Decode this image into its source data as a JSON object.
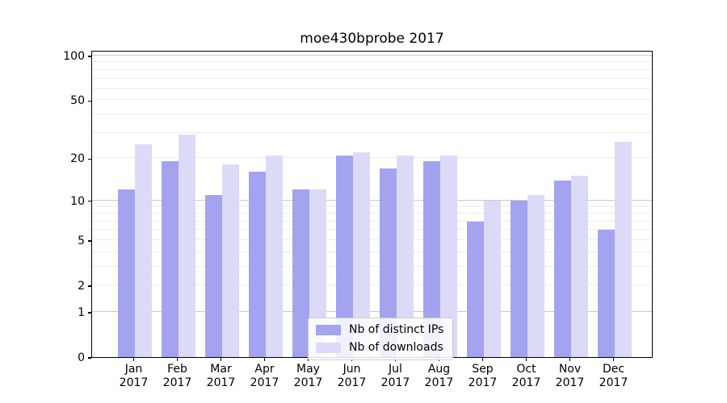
{
  "chart_data": {
    "type": "bar",
    "title": "moe430bprobe 2017",
    "categories": [
      "Jan",
      "Feb",
      "Mar",
      "Apr",
      "May",
      "Jun",
      "Jul",
      "Aug",
      "Sep",
      "Oct",
      "Nov",
      "Dec"
    ],
    "year": "2017",
    "series": [
      {
        "name": "Nb of distinct IPs",
        "color": "#a3a3f0",
        "values": [
          12,
          19,
          11,
          16,
          12,
          21,
          17,
          19,
          7,
          10,
          14,
          6
        ]
      },
      {
        "name": "Nb of downloads",
        "color": "#dbdbf8",
        "values": [
          25,
          29,
          18,
          21,
          12,
          22,
          21,
          21,
          10,
          11,
          15,
          26
        ]
      }
    ],
    "xlabel": "",
    "ylabel": "",
    "y_ticks": [
      0,
      1,
      2,
      5,
      10,
      20,
      50,
      100
    ],
    "y_minor_gridlines": [
      2,
      3,
      4,
      5,
      6,
      7,
      8,
      9,
      20,
      30,
      40,
      50,
      60,
      70,
      80,
      90
    ],
    "y_major_gridlines": [
      1,
      10,
      100
    ],
    "y_scale": "log10(value+1)",
    "ylim": [
      0,
      109
    ],
    "grid": "horizontal",
    "legend_position": "inside bottom-center"
  }
}
